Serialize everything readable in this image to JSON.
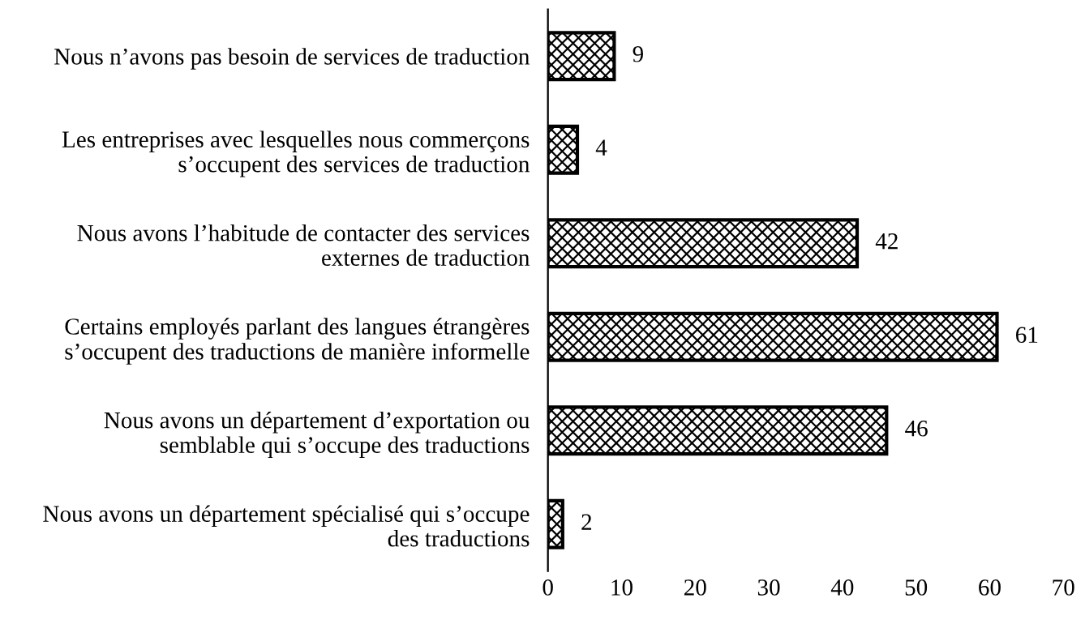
{
  "chart_data": {
    "type": "bar",
    "orientation": "horizontal",
    "categories": [
      "Nous n’avons pas besoin de services de traduction",
      "Les entreprises avec lesquelles nous commerçons\ns’occupent des services de traduction",
      "Nous avons l’habitude de contacter des services\nexternes de traduction",
      "Certains employés parlant des langues étrangères\ns’occupent des traductions de manière informelle",
      "Nous avons un département d’exportation ou\nsemblable qui s’occupe des traductions",
      "Nous avons un département spécialisé qui s’occupe\ndes traductions"
    ],
    "values": [
      9,
      4,
      42,
      61,
      46,
      2
    ],
    "color": "#000000",
    "xlim": [
      0,
      70
    ],
    "xticks": [
      0,
      10,
      20,
      30,
      40,
      50,
      60,
      70
    ],
    "data_labels": true,
    "grid": false,
    "legend": false
  }
}
